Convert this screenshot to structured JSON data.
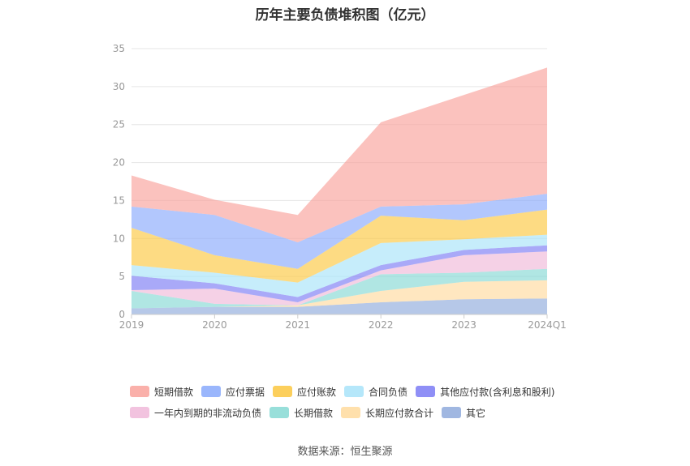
{
  "chart_data": {
    "type": "area",
    "stacked": true,
    "title": "历年主要负债堆积图（亿元）",
    "categories": [
      "2019",
      "2020",
      "2021",
      "2022",
      "2023",
      "2024Q1"
    ],
    "ylim": [
      0,
      35
    ],
    "yticks": [
      0,
      5,
      10,
      15,
      20,
      25,
      30,
      35
    ],
    "grid": true,
    "legend_position": "bottom",
    "series": [
      {
        "name": "其它",
        "color": "#8FAADC",
        "values": [
          0.8,
          1.0,
          1.0,
          1.6,
          2.0,
          2.1
        ]
      },
      {
        "name": "长期应付款合计",
        "color": "#FFDA9E",
        "values": [
          0.0,
          0.0,
          0.2,
          1.5,
          2.3,
          2.4
        ]
      },
      {
        "name": "长期借款",
        "color": "#86D9D4",
        "values": [
          2.3,
          0.4,
          0.0,
          2.2,
          1.2,
          1.5
        ]
      },
      {
        "name": "一年内到期的非流动负债",
        "color": "#F0B8D9",
        "values": [
          0.1,
          2.0,
          0.4,
          0.5,
          2.3,
          2.3
        ]
      },
      {
        "name": "其他应付款(含利息和股利)",
        "color": "#7B7BF5",
        "values": [
          1.9,
          0.7,
          0.7,
          0.7,
          0.7,
          0.8
        ]
      },
      {
        "name": "合同负债",
        "color": "#A8E3F9",
        "values": [
          1.4,
          1.4,
          1.9,
          2.9,
          1.4,
          1.4
        ]
      },
      {
        "name": "应付账款",
        "color": "#FCC740",
        "values": [
          4.9,
          2.3,
          1.8,
          3.6,
          2.5,
          3.3
        ]
      },
      {
        "name": "应付票据",
        "color": "#88A9FC",
        "values": [
          2.8,
          5.3,
          3.5,
          1.2,
          2.1,
          2.1
        ]
      },
      {
        "name": "短期借款",
        "color": "#F9A29B",
        "values": [
          4.1,
          2.0,
          3.6,
          11.1,
          14.4,
          16.6
        ]
      }
    ]
  },
  "legend": {
    "row1": [
      "短期借款",
      "应付票据",
      "应付账款",
      "合同负债",
      "其他应付款(含利息和股利)"
    ],
    "row2": [
      "一年内到期的非流动负债",
      "长期借款",
      "长期应付款合计",
      "其它"
    ]
  },
  "source": "数据来源：恒生聚源"
}
